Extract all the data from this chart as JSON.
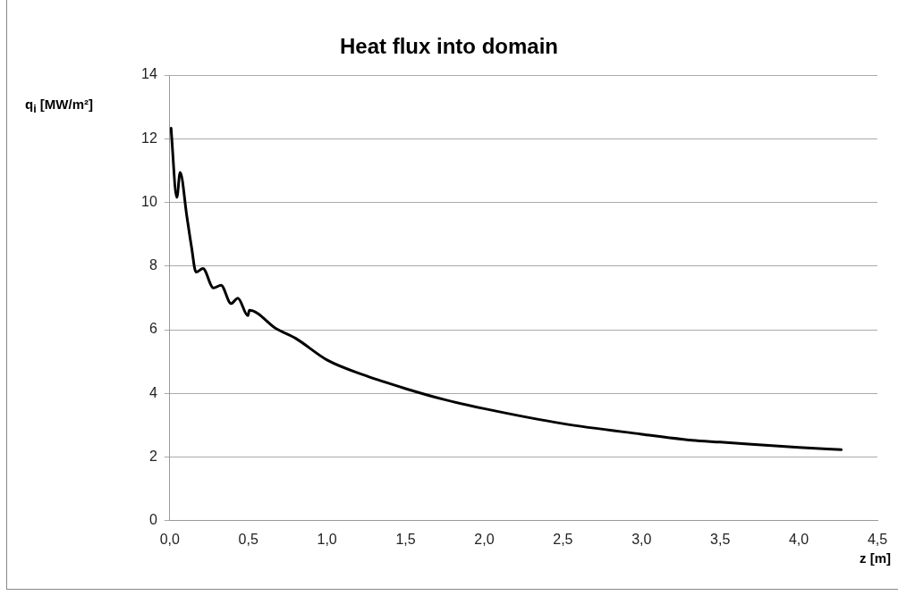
{
  "chart_data": {
    "type": "line",
    "title": "Heat flux into domain",
    "xlabel": "z [m]",
    "ylabel": "q$_{i}$   [MW/m²]",
    "series": [
      {
        "color": "#000000",
        "x": [
          0.008,
          0.045,
          0.066,
          0.109,
          0.138,
          0.167,
          0.211,
          0.278,
          0.326,
          0.39,
          0.433,
          0.497,
          0.506,
          0.681,
          0.8,
          1.0,
          1.25,
          1.5,
          1.75,
          2.0,
          2.5,
          3.0,
          3.32,
          3.5,
          4.0,
          4.27
        ],
        "values": [
          12.33,
          10.16,
          10.94,
          9.55,
          8.61,
          7.81,
          7.92,
          7.31,
          7.4,
          6.82,
          6.99,
          6.44,
          6.61,
          6.02,
          5.73,
          5.05,
          4.55,
          4.15,
          3.8,
          3.52,
          3.05,
          2.72,
          2.53,
          2.47,
          2.3,
          2.23
        ]
      }
    ],
    "xlim": [
      0,
      4.5
    ],
    "xticks": [
      {
        "value": 0,
        "label": "0,0"
      },
      {
        "value": 0.5,
        "label": "0,5"
      },
      {
        "value": 1,
        "label": "1,0"
      },
      {
        "value": 1.5,
        "label": "1,5"
      },
      {
        "value": 2,
        "label": "2,0"
      },
      {
        "value": 2.5,
        "label": "2,5"
      },
      {
        "value": 3,
        "label": "3,0"
      },
      {
        "value": 3.5,
        "label": "3,5"
      },
      {
        "value": 4,
        "label": "4,0"
      },
      {
        "value": 4.5,
        "label": "4,5"
      }
    ],
    "ylim": [
      0,
      14
    ],
    "yticks": [
      0,
      2,
      4,
      6,
      8,
      10,
      12,
      14
    ],
    "grid": "y",
    "legend": false,
    "marker": "none",
    "line_style": "solid"
  }
}
